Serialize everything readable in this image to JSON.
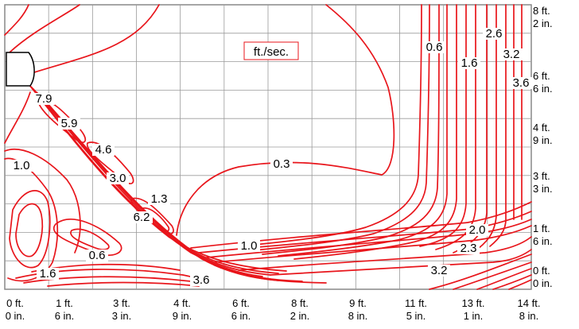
{
  "chart_data": {
    "type": "contour",
    "unit_label": "ft./sec.",
    "x_ticks": [
      [
        "0 ft.",
        "0 in."
      ],
      [
        "1 ft.",
        "6 in."
      ],
      [
        "3 ft.",
        "3 in."
      ],
      [
        "4 ft.",
        "9 in."
      ],
      [
        "6 ft.",
        "6 in."
      ],
      [
        "8 ft.",
        "2 in."
      ],
      [
        "9 ft.",
        "8 in."
      ],
      [
        "11 ft.",
        "5 in."
      ],
      [
        "13 ft.",
        "1 in."
      ],
      [
        "14 ft.",
        "8 in."
      ]
    ],
    "y_ticks": [
      [
        "8 ft.",
        "2 in."
      ],
      [
        "6 ft.",
        "6 in."
      ],
      [
        "4 ft.",
        "9 in."
      ],
      [
        "3 ft.",
        "3 in."
      ],
      [
        "1 ft.",
        "6 in."
      ],
      [
        "0 ft.",
        "0 in."
      ]
    ],
    "contour_labels": [
      "7.9",
      "5.9",
      "4.6",
      "3.0",
      "1.3",
      "6.2",
      "1.0",
      "0.6",
      "1.6",
      "3.6",
      "0.3",
      "1.0",
      "2.0",
      "2.3",
      "3.2",
      "0.6",
      "1.6",
      "2.6",
      "3.2",
      "3.6"
    ],
    "line_color": "#e8151b",
    "grid": true
  }
}
